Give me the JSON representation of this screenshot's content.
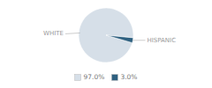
{
  "chart_data": {
    "type": "pie",
    "categories": [
      "WHITE",
      "HISPANIC"
    ],
    "values": [
      97.0,
      3.0
    ],
    "value_labels": [
      "97.0%",
      "3.0%"
    ],
    "colors": [
      "#d6dfe8",
      "#2e6080"
    ],
    "legend": "bottom"
  }
}
